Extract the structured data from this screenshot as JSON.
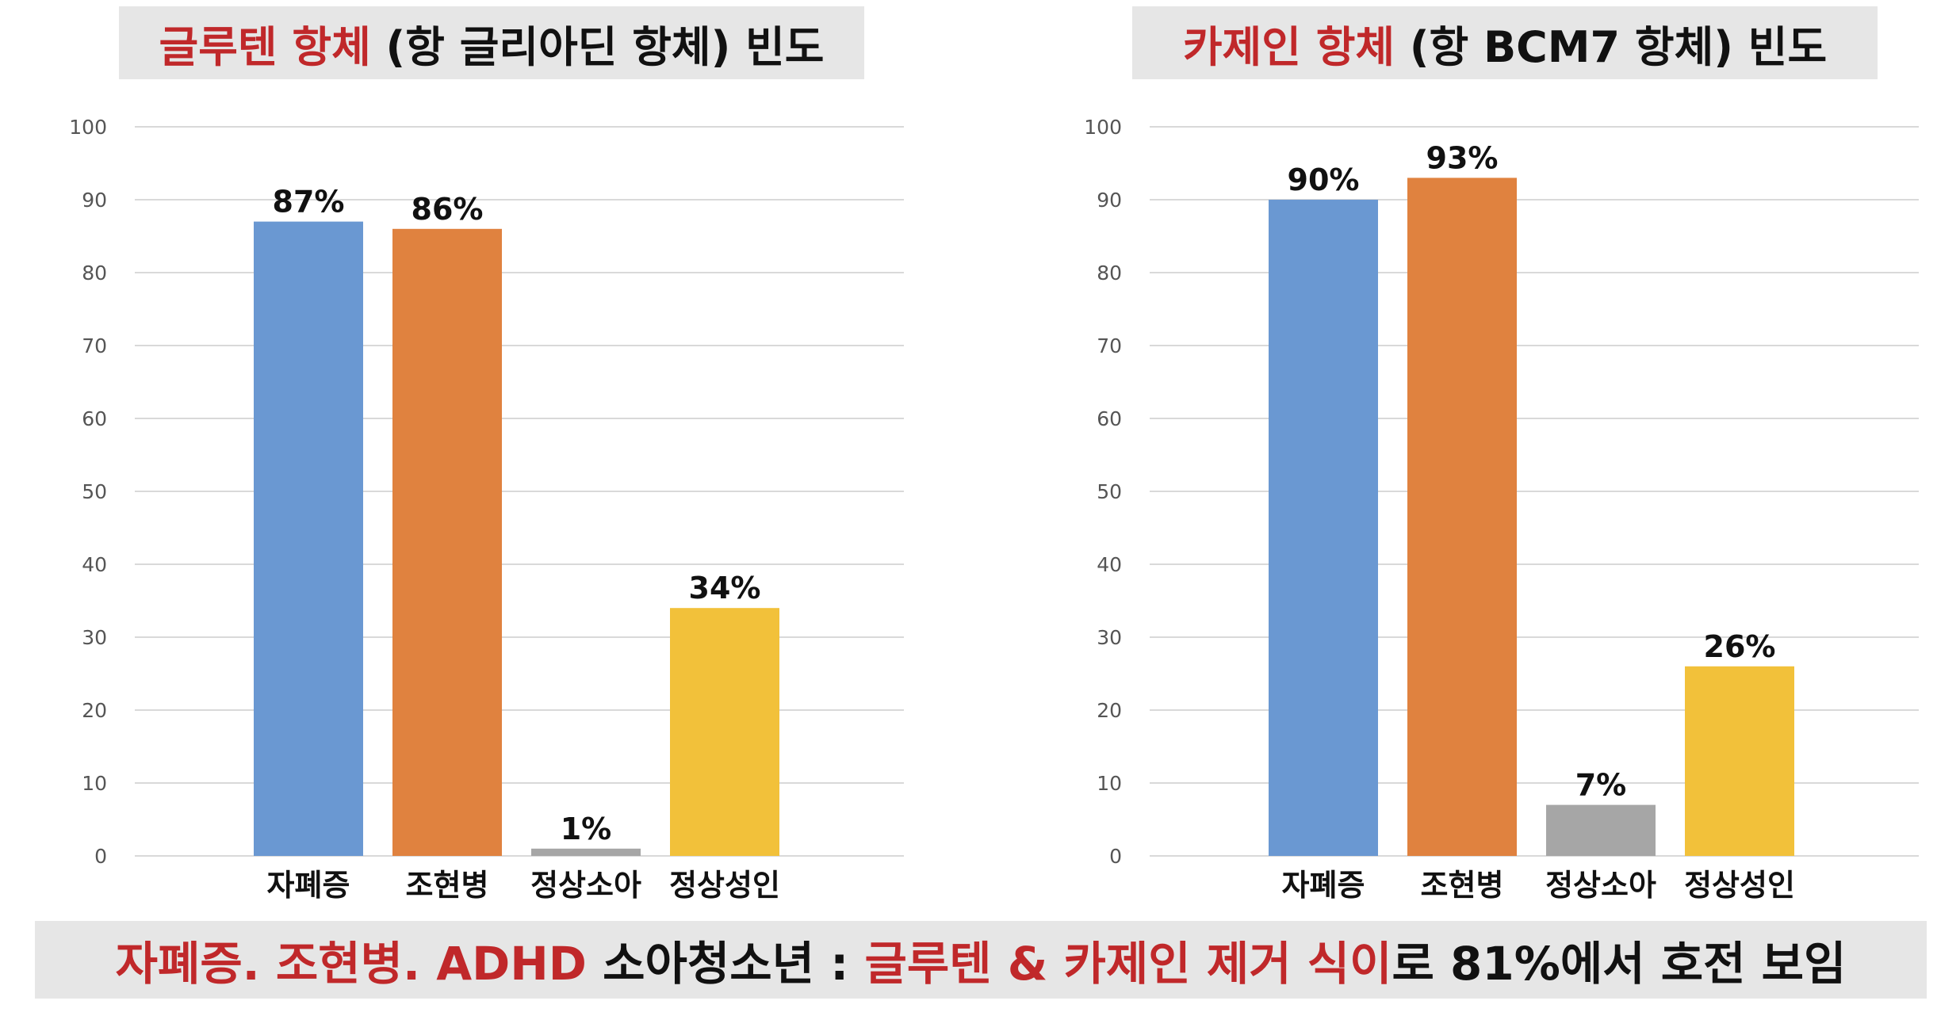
{
  "colors": {
    "red_text": "#c0282a",
    "autism": "#6a98d2",
    "schizophrenia": "#e0823f",
    "normal_child": "#a6a6a6",
    "normal_adult": "#f2c13a",
    "banner_bg": "#e6e6e6"
  },
  "chart_data": [
    {
      "type": "bar",
      "title_red": "글루텐 항체",
      "title_rest": " (항 글리아딘 항체) 빈도",
      "categories": [
        "자폐증",
        "조현병",
        "정상소아",
        "정상성인"
      ],
      "values": [
        87,
        86,
        1,
        34
      ],
      "data_labels": [
        "87%",
        "86%",
        "1%",
        "34%"
      ],
      "ylim": [
        0,
        100
      ],
      "yticks": [
        "0",
        "10",
        "20",
        "30",
        "40",
        "50",
        "60",
        "70",
        "80",
        "90",
        "100"
      ],
      "grid": true
    },
    {
      "type": "bar",
      "title_red": "카제인 항체",
      "title_rest": " (항 BCM7 항체) 빈도",
      "categories": [
        "자폐증",
        "조현병",
        "정상소아",
        "정상성인"
      ],
      "values": [
        90,
        93,
        7,
        26
      ],
      "data_labels": [
        "90%",
        "93%",
        "7%",
        "26%"
      ],
      "ylim": [
        0,
        100
      ],
      "yticks": [
        "0",
        "10",
        "20",
        "30",
        "40",
        "50",
        "60",
        "70",
        "80",
        "90",
        "100"
      ],
      "grid": true
    }
  ],
  "banner": {
    "red_part1": "자폐증. 조현병. ADHD",
    "black_part1": " 소아청소년 : ",
    "red_part2": "글루텐 & 카제인 제거 식이",
    "black_part2": "로 81%에서 호전 보임"
  }
}
